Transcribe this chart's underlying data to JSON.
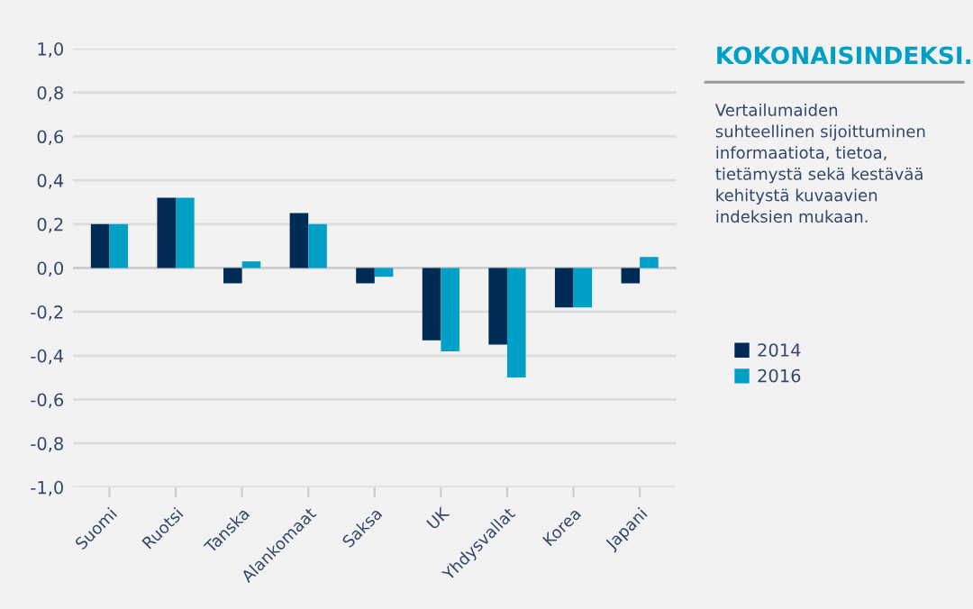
{
  "chart_data": {
    "type": "bar",
    "title": "KOKONAISINDEKSI.",
    "subtitle": "Vertailumaiden\nsuhteellinen sijoittuminen\ninformaatiota, tietoa,\ntietämystä sekä kestävää\nkehitystä kuvaavien\nindeksien mukaan.",
    "categories": [
      "Suomi",
      "Ruotsi",
      "Tanska",
      "Alankomaat",
      "Saksa",
      "UK",
      "Yhdysvallat",
      "Korea",
      "Japani"
    ],
    "series": [
      {
        "name": "2014",
        "color": "#002b55",
        "values": [
          0.2,
          0.32,
          -0.07,
          0.25,
          -0.07,
          -0.33,
          -0.35,
          -0.18,
          -0.07
        ]
      },
      {
        "name": "2016",
        "color": "#00a0c6",
        "values": [
          0.2,
          0.32,
          0.03,
          0.2,
          -0.04,
          -0.38,
          -0.5,
          -0.18,
          0.05
        ]
      }
    ],
    "ylim": [
      -1.0,
      1.0
    ],
    "yticks": [
      {
        "value": -1.0,
        "label": "-1,0"
      },
      {
        "value": -0.8,
        "label": "-0,8"
      },
      {
        "value": -0.6,
        "label": "-0,6"
      },
      {
        "value": -0.4,
        "label": "-0,4"
      },
      {
        "value": -0.2,
        "label": "-0,2"
      },
      {
        "value": 0.0,
        "label": "0,0"
      },
      {
        "value": 0.2,
        "label": "0,2"
      },
      {
        "value": 0.4,
        "label": "0,4"
      },
      {
        "value": 0.6,
        "label": "0,6"
      },
      {
        "value": 0.8,
        "label": "0,8"
      },
      {
        "value": 1.0,
        "label": "1,0"
      }
    ],
    "grid": "y",
    "legend": "right"
  }
}
